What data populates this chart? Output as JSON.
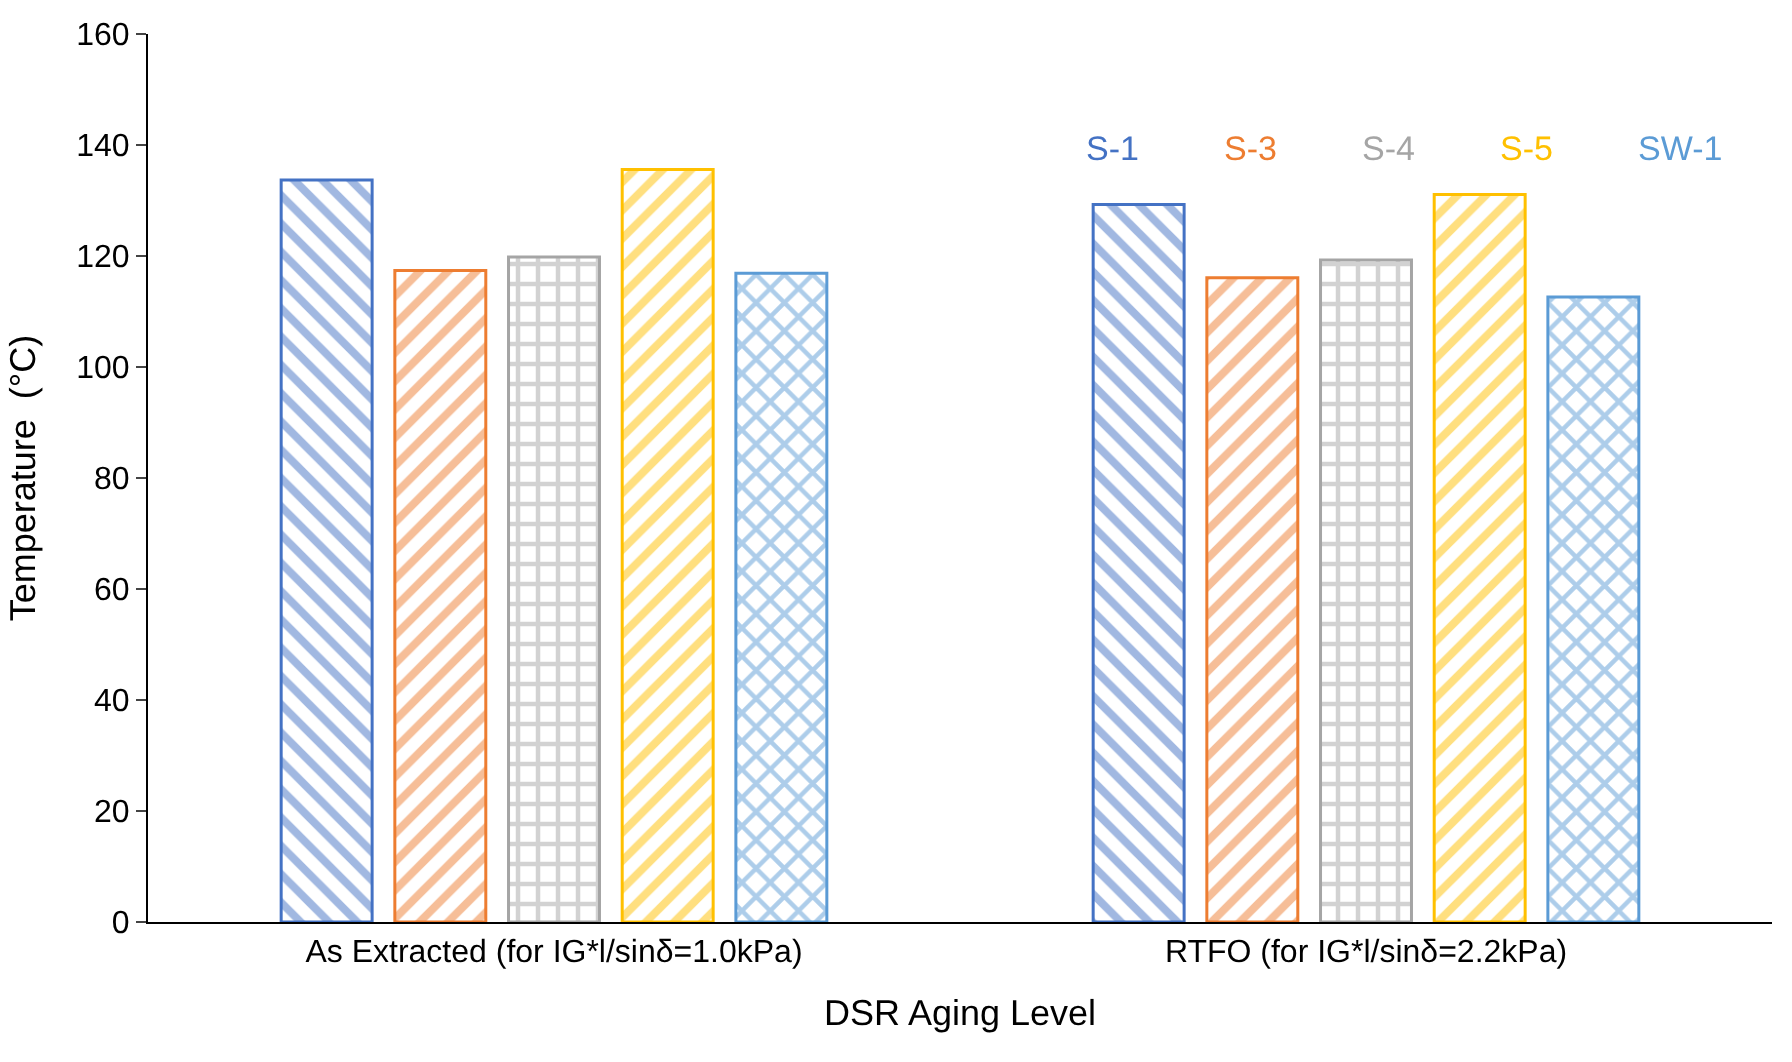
{
  "chart_data": {
    "type": "bar",
    "xlabel": "DSR Aging Level",
    "ylabel": "Temperature  (°C)",
    "categories": [
      "As Extracted (for IG*l/sinδ=1.0kPa)",
      "RTFO (for IG*l/sinδ=2.2kPa)"
    ],
    "series": [
      {
        "name": "S-1",
        "color": "#4472c4",
        "values": [
          133.7,
          129.3
        ]
      },
      {
        "name": "S-3",
        "color": "#ed7d31",
        "values": [
          117.4,
          116.1
        ]
      },
      {
        "name": "S-4",
        "color": "#a5a5a5",
        "values": [
          119.8,
          119.3
        ]
      },
      {
        "name": "S-5",
        "color": "#ffc000",
        "values": [
          135.6,
          131.1
        ]
      },
      {
        "name": "SW-1",
        "color": "#5b9bd5",
        "values": [
          116.9,
          112.6
        ]
      }
    ],
    "ylim": [
      0,
      160
    ],
    "yticks": [
      0,
      20,
      40,
      60,
      80,
      100,
      120,
      140,
      160
    ],
    "grid": false,
    "legend": "top right"
  }
}
